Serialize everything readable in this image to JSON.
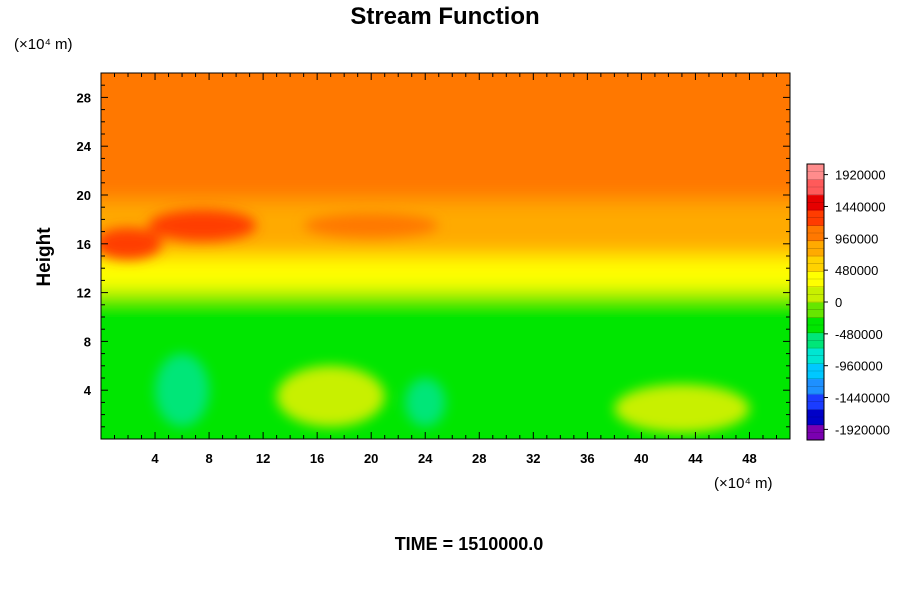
{
  "chart_data": {
    "type": "heatmap",
    "title": "Stream Function",
    "ylabel": "Height",
    "xunit": "(×10⁴ m)",
    "yunit": "(×10⁴ m)",
    "xlim": [
      0,
      51
    ],
    "ylim": [
      0,
      30
    ],
    "xticks": [
      "4",
      "8",
      "12",
      "16",
      "20",
      "24",
      "28",
      "32",
      "36",
      "40",
      "44",
      "48"
    ],
    "yticks": [
      "4",
      "8",
      "12",
      "16",
      "20",
      "24",
      "28"
    ],
    "colorbar": {
      "labels": [
        "1920000",
        "1440000",
        "960000",
        "480000",
        "0",
        "-480000",
        "-960000",
        "-1440000",
        "-1920000"
      ],
      "range": [
        -2080000,
        2080000
      ],
      "colors": [
        "#7a00b0",
        "#0000c8",
        "#1a3cff",
        "#1e90ff",
        "#00c8ff",
        "#00e6d2",
        "#00e678",
        "#00e600",
        "#66e600",
        "#c8f000",
        "#ffff00",
        "#ffd200",
        "#ffaa00",
        "#ff7800",
        "#ff3c00",
        "#e60000",
        "#ff5a5a",
        "#ff8c8c"
      ]
    },
    "bands": [
      {
        "from": 0,
        "to": 12,
        "value": -240000
      },
      {
        "from": 12,
        "to": 15,
        "value": 240000
      },
      {
        "from": 15,
        "to": 19.5,
        "value": 720000
      },
      {
        "from": 19.5,
        "to": 30,
        "value": 960000
      }
    ],
    "features": [
      {
        "x": 7.5,
        "y": 17.5,
        "rx": 4,
        "ry": 1.3,
        "value": 1200000
      },
      {
        "x": 20,
        "y": 17.5,
        "rx": 5,
        "ry": 1,
        "value": 1150000
      },
      {
        "x": 2,
        "y": 16,
        "rx": 2.5,
        "ry": 1.3,
        "value": 1250000
      },
      {
        "x": 17,
        "y": 3.5,
        "rx": 4,
        "ry": 2.5,
        "value": 100000
      },
      {
        "x": 43,
        "y": 2.5,
        "rx": 5,
        "ry": 2,
        "value": 200000
      },
      {
        "x": 6,
        "y": 4,
        "rx": 2,
        "ry": 3,
        "value": -600000
      },
      {
        "x": 24,
        "y": 3,
        "rx": 1.5,
        "ry": 2,
        "value": -600000
      }
    ],
    "footer": "TIME = 1510000.0"
  }
}
